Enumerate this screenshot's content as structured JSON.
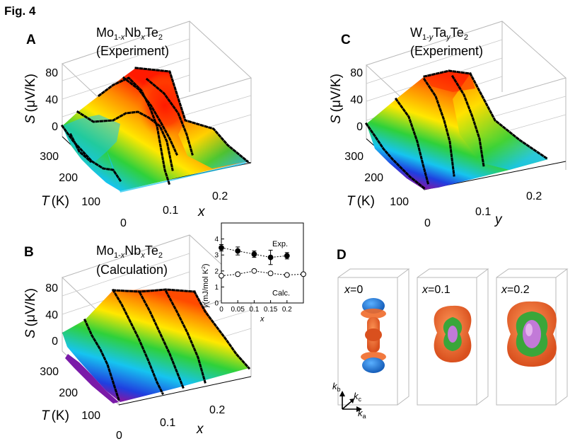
{
  "figure": {
    "title": "Fig. 4"
  },
  "panel_a": {
    "label": "A",
    "title_line1": "Mo",
    "title_sub1": "1-",
    "title_subvar": "x",
    "title_mid": "Nb",
    "title_var": "x",
    "title_end": "Te",
    "title_sub2": "2",
    "title_line2": "(Experiment)",
    "s_axis": "S",
    "s_unit": "(μV/K)",
    "s_ticks": [
      "80",
      "40",
      "0"
    ],
    "t_axis": "T",
    "t_unit": "(K)",
    "t_ticks": [
      "300",
      "200",
      "100"
    ],
    "x_axis": "x",
    "x_ticks": [
      "0",
      "0.1",
      "0.2"
    ]
  },
  "panel_b": {
    "label": "B",
    "title_line1": "Mo",
    "title_sub1": "1-",
    "title_subvar": "x",
    "title_mid": "Nb",
    "title_var": "x",
    "title_end": "Te",
    "title_sub2": "2",
    "title_line2": "(Calculation)",
    "s_axis": "S",
    "s_unit": "(μV/K)",
    "s_ticks": [
      "80",
      "40",
      "0"
    ],
    "t_axis": "T",
    "t_unit": "(K)",
    "t_ticks": [
      "300",
      "200",
      "100"
    ],
    "x_axis": "x",
    "x_ticks": [
      "0",
      "0.1",
      "0.2"
    ]
  },
  "panel_c": {
    "label": "C",
    "title_line1": "W",
    "title_sub1": "1-",
    "title_subvar": "y",
    "title_mid": "Ta",
    "title_var": "y",
    "title_end": "Te",
    "title_sub2": "2",
    "title_line2": "(Experiment)",
    "s_axis": "S",
    "s_unit": "(μV/K)",
    "s_ticks": [
      "80",
      "40",
      "0"
    ],
    "t_axis": "T",
    "t_unit": "(K)",
    "t_ticks": [
      "300",
      "200",
      "100"
    ],
    "y_axis": "y",
    "y_ticks": [
      "0",
      "0.1",
      "0.2"
    ]
  },
  "panel_d": {
    "label": "D",
    "boxes": [
      {
        "var": "x",
        "value": "=0"
      },
      {
        "var": "x",
        "value": "=0.1"
      },
      {
        "var": "x",
        "value": "=0.2"
      }
    ],
    "axes": {
      "b": "b",
      "c": "c",
      "a": "a",
      "k": "k"
    }
  },
  "chart_data": {
    "type": "line",
    "title": "",
    "xlabel": "x",
    "ylabel": "γ (mJ/mol K²)",
    "ylim": [
      0,
      5
    ],
    "xlim": [
      0,
      0.25
    ],
    "x_ticks": [
      "0",
      "0.05",
      "0.1",
      "0.15",
      "0.2"
    ],
    "y_ticks": [
      "0",
      "1",
      "2",
      "3",
      "4"
    ],
    "y_label_main": "γ",
    "y_label_unit": "(mJ/mol K",
    "y_label_sup": "2",
    "y_label_close": ")",
    "series": [
      {
        "name": "Exp.",
        "x": [
          0,
          0.05,
          0.1,
          0.15,
          0.2
        ],
        "values": [
          3.45,
          3.25,
          3.05,
          2.85,
          2.95
        ],
        "errors": [
          0.2,
          0.25,
          0.2,
          0.45,
          0.2
        ],
        "marker": "filled"
      },
      {
        "name": "Calc.",
        "x": [
          0,
          0.05,
          0.1,
          0.15,
          0.2,
          0.25
        ],
        "values": [
          1.7,
          1.8,
          2.0,
          1.85,
          1.75,
          1.8
        ],
        "errors": [
          0,
          0,
          0,
          0,
          0,
          0
        ],
        "marker": "open"
      }
    ]
  },
  "colors": {
    "red": "#ff1a00",
    "orange": "#ff8a00",
    "yellow": "#ffe800",
    "green": "#2fd13a",
    "cyan": "#16c4f0",
    "blue": "#1f3fe0",
    "violet": "#7a1aa8",
    "fs_orange": "#ef6a2a",
    "fs_green": "#3aa63a",
    "fs_blue": "#1f6fd6",
    "fs_violet": "#c27ad8"
  }
}
